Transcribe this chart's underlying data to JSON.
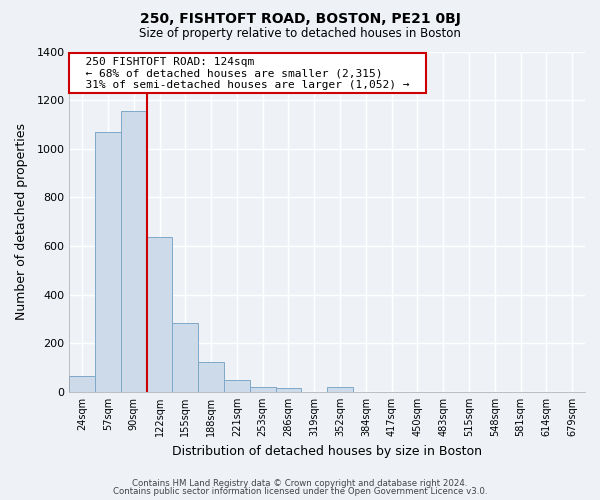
{
  "title": "250, FISHTOFT ROAD, BOSTON, PE21 0BJ",
  "subtitle": "Size of property relative to detached houses in Boston",
  "xlabel": "Distribution of detached houses by size in Boston",
  "ylabel": "Number of detached properties",
  "bar_labels": [
    "24sqm",
    "57sqm",
    "90sqm",
    "122sqm",
    "155sqm",
    "188sqm",
    "221sqm",
    "253sqm",
    "286sqm",
    "319sqm",
    "352sqm",
    "384sqm",
    "417sqm",
    "450sqm",
    "483sqm",
    "515sqm",
    "548sqm",
    "581sqm",
    "614sqm",
    "679sqm"
  ],
  "bar_values": [
    65,
    1070,
    1155,
    638,
    285,
    122,
    48,
    22,
    18,
    0,
    20,
    0,
    0,
    0,
    0,
    0,
    0,
    0,
    0,
    0
  ],
  "bar_color": "#ccdaea",
  "bar_edge_color": "#7fa8c8",
  "highlight_color": "#cc0000",
  "annotation_title": "250 FISHTOFT ROAD: 124sqm",
  "annotation_line1": "← 68% of detached houses are smaller (2,315)",
  "annotation_line2": "31% of semi-detached houses are larger (1,052) →",
  "annotation_box_color": "#ffffff",
  "annotation_box_edge": "#cc0000",
  "ylim": [
    0,
    1400
  ],
  "yticks": [
    0,
    200,
    400,
    600,
    800,
    1000,
    1200,
    1400
  ],
  "footer_line1": "Contains HM Land Registry data © Crown copyright and database right 2024.",
  "footer_line2": "Contains public sector information licensed under the Open Government Licence v3.0.",
  "background_color": "#eef2f7",
  "plot_bg_color": "#eef2f7",
  "grid_color": "#ffffff"
}
